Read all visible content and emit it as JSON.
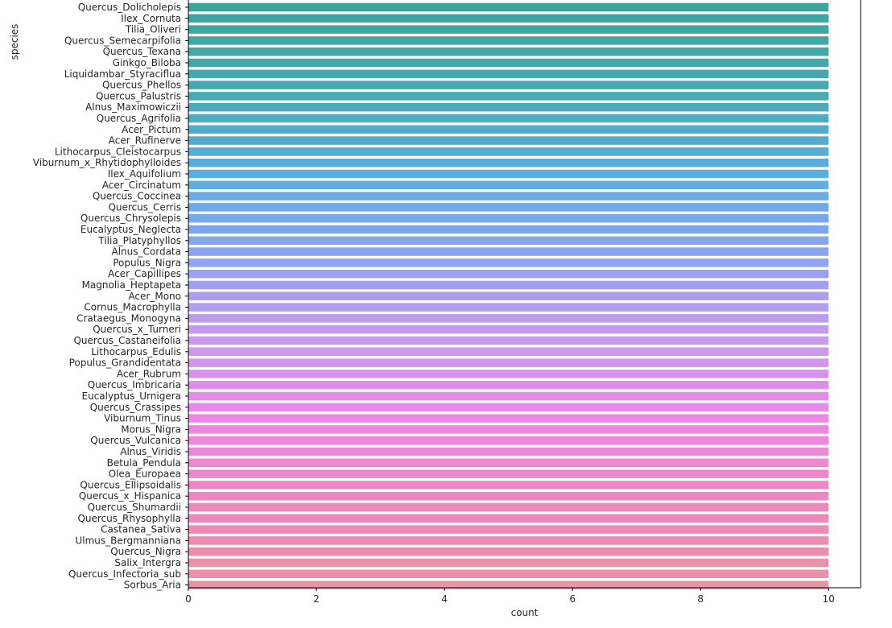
{
  "chart_data": {
    "type": "bar",
    "orientation": "horizontal",
    "xlabel": "count",
    "ylabel": "species",
    "xlim": [
      0,
      10.5
    ],
    "xticks": [
      0,
      2,
      4,
      6,
      8,
      10
    ],
    "grid": false,
    "categories": [
      "Quercus_Dolicholepis",
      "Ilex_Cornuta",
      "Tilia_Oliveri",
      "Quercus_Semecarpifolia",
      "Quercus_Texana",
      "Ginkgo_Biloba",
      "Liquidambar_Styraciflua",
      "Quercus_Phellos",
      "Quercus_Palustris",
      "Alnus_Maximowiczii",
      "Quercus_Agrifolia",
      "Acer_Pictum",
      "Acer_Rufinerve",
      "Lithocarpus_Cleistocarpus",
      "Viburnum_x_Rhytidophylloides",
      "Ilex_Aquifolium",
      "Acer_Circinatum",
      "Quercus_Coccinea",
      "Quercus_Cerris",
      "Quercus_Chrysolepis",
      "Eucalyptus_Neglecta",
      "Tilia_Platyphyllos",
      "Alnus_Cordata",
      "Populus_Nigra",
      "Acer_Capillipes",
      "Magnolia_Heptapeta",
      "Acer_Mono",
      "Cornus_Macrophylla",
      "Crataegus_Monogyna",
      "Quercus_x_Turneri",
      "Quercus_Castaneifolia",
      "Lithocarpus_Edulis",
      "Populus_Grandidentata",
      "Acer_Rubrum",
      "Quercus_Imbricaria",
      "Eucalyptus_Urnigera",
      "Quercus_Crassipes",
      "Viburnum_Tinus",
      "Morus_Nigra",
      "Quercus_Vulcanica",
      "Alnus_Viridis",
      "Betula_Pendula",
      "Olea_Europaea",
      "Quercus_Ellipsoidalis",
      "Quercus_x_Hispanica",
      "Quercus_Shumardii",
      "Quercus_Rhysophylla",
      "Castanea_Sativa",
      "Ulmus_Bergmanniana",
      "Quercus_Nigra",
      "Salix_Intergra",
      "Quercus_Infectoria_sub",
      "Sorbus_Aria"
    ],
    "values": [
      10,
      10,
      10,
      10,
      10,
      10,
      10,
      10,
      10,
      10,
      10,
      10,
      10,
      10,
      10,
      10,
      10,
      10,
      10,
      10,
      10,
      10,
      10,
      10,
      10,
      10,
      10,
      10,
      10,
      10,
      10,
      10,
      10,
      10,
      10,
      10,
      10,
      10,
      10,
      10,
      10,
      10,
      10,
      10,
      10,
      10,
      10,
      10,
      10,
      10,
      10,
      10,
      10
    ],
    "palette_stops": [
      "#3ba59d",
      "#48a9b0",
      "#5aaee1",
      "#8ea3f2",
      "#c89bf0",
      "#ec87e6",
      "#ef86be",
      "#e796a5"
    ]
  }
}
